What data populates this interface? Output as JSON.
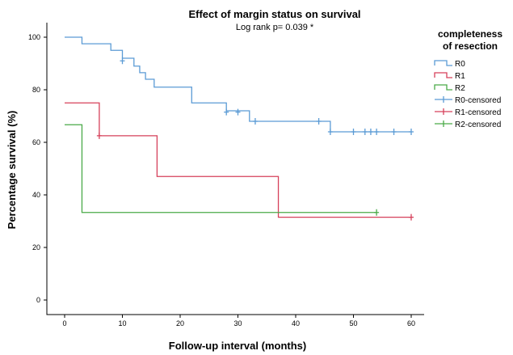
{
  "chart_data": {
    "type": "line",
    "subtype": "kaplan-meier step",
    "title": "Effect of margin status on survival",
    "subtitle": "Log rank p= 0.039 *",
    "xlabel": "Follow-up interval (months)",
    "ylabel": "Percentage survival (%)",
    "xlim": [
      0,
      60
    ],
    "ylim": [
      0,
      100
    ],
    "xticks": [
      "0",
      "10",
      "20",
      "30",
      "40",
      "50",
      "60"
    ],
    "yticks": [
      "0",
      "20",
      "40",
      "60",
      "80",
      "100"
    ],
    "grid": false,
    "legend": {
      "title_line1": "completeness",
      "title_line2": "of resection",
      "placement": "right",
      "entries": [
        {
          "label": "R0",
          "kind": "line",
          "color": "#5b9bd5"
        },
        {
          "label": "R1",
          "kind": "line",
          "color": "#d6405a"
        },
        {
          "label": "R2",
          "kind": "line",
          "color": "#4aaa48"
        },
        {
          "label": "R0-censored",
          "kind": "censor",
          "color": "#5b9bd5"
        },
        {
          "label": "R1-censored",
          "kind": "censor",
          "color": "#d6405a"
        },
        {
          "label": "R2-censored",
          "kind": "censor",
          "color": "#4aaa48"
        }
      ]
    },
    "series": [
      {
        "name": "R0",
        "color": "#5b9bd5",
        "steps": [
          [
            0,
            100
          ],
          [
            3,
            97.5
          ],
          [
            8,
            95
          ],
          [
            10,
            92
          ],
          [
            12,
            89
          ],
          [
            13,
            86.5
          ],
          [
            14,
            84
          ],
          [
            15.5,
            81
          ],
          [
            22,
            75
          ],
          [
            28,
            72
          ],
          [
            32,
            68
          ],
          [
            46,
            64
          ],
          [
            60,
            64
          ]
        ],
        "censored": [
          [
            10,
            91
          ],
          [
            28,
            71.5
          ],
          [
            30,
            71.5
          ],
          [
            33,
            68
          ],
          [
            44,
            68
          ],
          [
            46,
            64
          ],
          [
            50,
            64
          ],
          [
            52,
            64
          ],
          [
            53,
            64
          ],
          [
            54,
            64
          ],
          [
            57,
            64
          ],
          [
            60,
            64
          ]
        ]
      },
      {
        "name": "R1",
        "color": "#d6405a",
        "steps": [
          [
            0,
            75
          ],
          [
            6,
            62.5
          ],
          [
            16,
            47
          ],
          [
            37,
            31.5
          ],
          [
            60,
            31.5
          ]
        ],
        "censored": [
          [
            6,
            62.5
          ],
          [
            60,
            31.5
          ]
        ]
      },
      {
        "name": "R2",
        "color": "#4aaa48",
        "steps": [
          [
            0,
            66.7
          ],
          [
            3,
            33.3
          ],
          [
            54,
            33.3
          ]
        ],
        "censored": [
          [
            54,
            33.3
          ]
        ]
      }
    ]
  }
}
